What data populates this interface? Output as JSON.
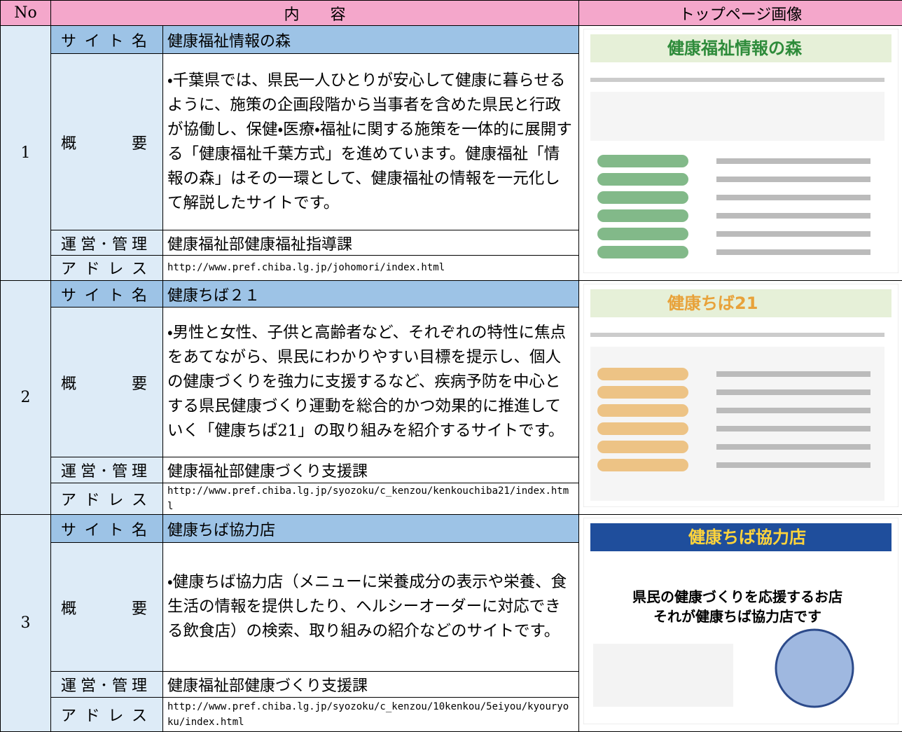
{
  "table": {
    "header": [
      "No",
      "内　　容",
      "トップページ画像"
    ],
    "labels": {
      "site": "サイト名",
      "summary": "概要",
      "admin": "運営･管理",
      "address": "アドレス"
    },
    "rows": [
      {
        "no": "1",
        "site": "健康福祉情報の森",
        "summary": "・千葉県では、県民一人ひとりが安心して健康に暮らせるように、施策の企画段階から当事者を含めた県民と行政が協働し、保健・医療・福祉に関する施策を一体的に展開する「健康福祉千葉方式」を進めています。健康福祉「情報の森」はその一環として、健康福祉の情報を一元化して解説したサイトです。",
        "admin": "健康福祉部健康福祉指導課",
        "address": "http://www.pref.chiba.lg.jp/johomori/index.html",
        "image_title": "健康福祉情報の森"
      },
      {
        "no": "2",
        "site": "健康ちば２１",
        "summary": "・男性と女性、子供と高齢者など、それぞれの特性に焦点をあてながら、県民にわかりやすい目標を提示し、個人の健康づくりを強力に支援するなど、疾病予防を中心とする県民健康づくり運動を総合的かつ効果的に推進していく「健康ちば21」の取り組みを紹介するサイトです。",
        "admin": "健康福祉部健康づくり支援課",
        "address": "http://www.pref.chiba.lg.jp/syozoku/c_kenzou/kenkouchiba21/index.html",
        "image_title": "健康ちば21"
      },
      {
        "no": "3",
        "site": "健康ちば協力店",
        "summary": "・健康ちば協力店（メニューに栄養成分の表示や栄養、食生活の情報を提供したり、ヘルシーオーダーに対応できる飲食店）の検索、取り組みの紹介などのサイトです。",
        "admin": "健康福祉部健康づくり支援課",
        "address": "http://www.pref.chiba.lg.jp/syozoku/c_kenzou/10kenkou/5eiyou/kyouryoku/index.html",
        "image_title": "健康ちば協力店",
        "image_heading": [
          "県民の健康づくりを応援するお店",
          "それが健康ちば協力店です"
        ]
      }
    ]
  }
}
